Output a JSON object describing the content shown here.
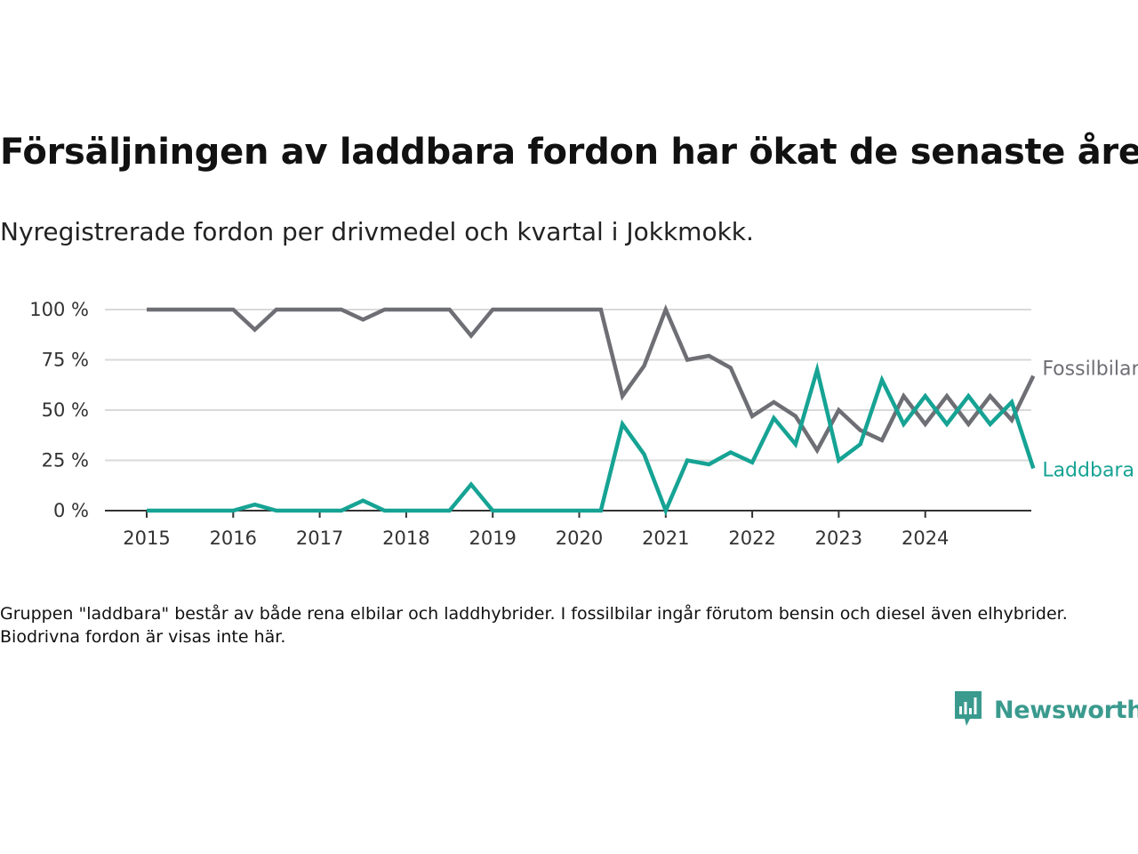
{
  "title": "Försäljningen av laddbara fordon har ökat de senaste åren",
  "subtitle": "Nyregistrerade fordon per drivmedel och kvartal i Jokkmokk.",
  "note": "Gruppen \"laddbara\" består av både rena elbilar och laddhybrider. I fossilbilar ingår förutom bensin och diesel även elhybrider. Biodrivna fordon är visas inte här.",
  "brand": {
    "name": "Newsworthy",
    "icon": "newsworthy-logo-icon",
    "color": "#3a9a8e"
  },
  "chart_data": {
    "type": "line",
    "title": "Försäljningen av laddbara fordon har ökat de senaste åren",
    "subtitle": "Nyregistrerade fordon per drivmedel och kvartal i Jokkmokk.",
    "xlabel": "",
    "ylabel": "",
    "x_ticks": [
      "2015",
      "2016",
      "2017",
      "2018",
      "2019",
      "2020",
      "2021",
      "2022",
      "2023",
      "2024"
    ],
    "x_range": [
      2015,
      2025
    ],
    "ylim": [
      0,
      100
    ],
    "y_ticks": [
      0,
      25,
      50,
      75,
      100
    ],
    "y_tick_labels": [
      "0 %",
      "25 %",
      "50 %",
      "75 %",
      "100 %"
    ],
    "grid": "horizontal",
    "x_step": 0.25,
    "x_start": 2015,
    "series": [
      {
        "name": "Fossilbilar",
        "color": "#6e6e75",
        "values": [
          100,
          100,
          100,
          100,
          100,
          90,
          100,
          100,
          100,
          100,
          95,
          100,
          100,
          100,
          100,
          87,
          100,
          100,
          100,
          100,
          100,
          100,
          57,
          72,
          100,
          75,
          77,
          71,
          47,
          54,
          47,
          30,
          50,
          40,
          35,
          57,
          43,
          57,
          43,
          57,
          45,
          67
        ]
      },
      {
        "name": "Laddbara",
        "color": "#16a394",
        "values": [
          0,
          0,
          0,
          0,
          0,
          3,
          0,
          0,
          0,
          0,
          5,
          0,
          0,
          0,
          0,
          13,
          0,
          0,
          0,
          0,
          0,
          0,
          43,
          28,
          0,
          25,
          23,
          29,
          24,
          46,
          33,
          70,
          25,
          33,
          65,
          43,
          57,
          43,
          57,
          43,
          54,
          21
        ]
      }
    ]
  }
}
